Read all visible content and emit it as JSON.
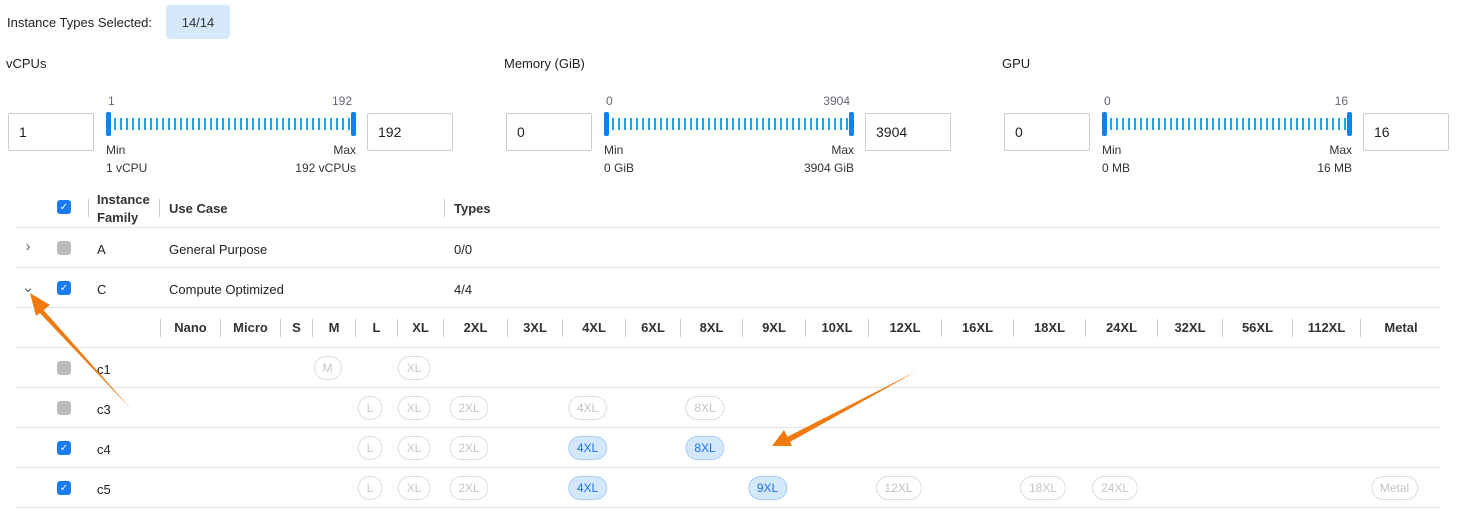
{
  "header": {
    "label": "Instance Types Selected:",
    "value": "14/14"
  },
  "filters": [
    {
      "title": "vCPUs",
      "min_input": "1",
      "max_input": "192",
      "tick_min": "1",
      "tick_max": "192",
      "min_label": "Min",
      "max_label": "Max",
      "min_desc": "1 vCPU",
      "max_desc": "192 vCPUs"
    },
    {
      "title": "Memory (GiB)",
      "min_input": "0",
      "max_input": "3904",
      "tick_min": "0",
      "tick_max": "3904",
      "min_label": "Min",
      "max_label": "Max",
      "min_desc": "0 GiB",
      "max_desc": "3904 GiB"
    },
    {
      "title": "GPU",
      "min_input": "0",
      "max_input": "16",
      "tick_min": "0",
      "tick_max": "16",
      "min_label": "Min",
      "max_label": "Max",
      "min_desc": "0 MB",
      "max_desc": "16 MB"
    }
  ],
  "table": {
    "headers": {
      "family": "Instance Family",
      "use_case": "Use Case",
      "types": "Types"
    },
    "families": [
      {
        "name": "A",
        "use_case": "General Purpose",
        "types": "0/0",
        "expanded": false,
        "checked": false
      },
      {
        "name": "C",
        "use_case": "Compute Optimized",
        "types": "4/4",
        "expanded": true,
        "checked": true
      }
    ],
    "size_columns": [
      "Nano",
      "Micro",
      "S",
      "M",
      "L",
      "XL",
      "2XL",
      "3XL",
      "4XL",
      "6XL",
      "8XL",
      "9XL",
      "10XL",
      "12XL",
      "16XL",
      "18XL",
      "24XL",
      "32XL",
      "56XL",
      "112XL",
      "Metal"
    ],
    "sub_rows": [
      {
        "name": "c1",
        "checked": false,
        "chips": [
          {
            "label": "M",
            "state": "disabled"
          },
          {
            "label": "XL",
            "state": "disabled"
          }
        ]
      },
      {
        "name": "c3",
        "checked": false,
        "chips": [
          {
            "label": "L",
            "state": "disabled"
          },
          {
            "label": "XL",
            "state": "disabled"
          },
          {
            "label": "2XL",
            "state": "disabled"
          },
          {
            "label": "4XL",
            "state": "disabled"
          },
          {
            "label": "8XL",
            "state": "disabled"
          }
        ]
      },
      {
        "name": "c4",
        "checked": true,
        "chips": [
          {
            "label": "L",
            "state": "disabled"
          },
          {
            "label": "XL",
            "state": "disabled"
          },
          {
            "label": "2XL",
            "state": "disabled"
          },
          {
            "label": "4XL",
            "state": "selected"
          },
          {
            "label": "8XL",
            "state": "selected"
          }
        ]
      },
      {
        "name": "c5",
        "checked": true,
        "chips": [
          {
            "label": "L",
            "state": "disabled"
          },
          {
            "label": "XL",
            "state": "disabled"
          },
          {
            "label": "2XL",
            "state": "disabled"
          },
          {
            "label": "4XL",
            "state": "selected"
          },
          {
            "label": "9XL",
            "state": "selected"
          },
          {
            "label": "12XL",
            "state": "disabled"
          },
          {
            "label": "18XL",
            "state": "disabled"
          },
          {
            "label": "24XL",
            "state": "disabled"
          },
          {
            "label": "Metal",
            "state": "disabled"
          }
        ]
      }
    ]
  },
  "colors": {
    "accent": "#1a7cf0",
    "chip_selected": "#d4e8fc",
    "annotation_arrow": "#f07a10"
  }
}
